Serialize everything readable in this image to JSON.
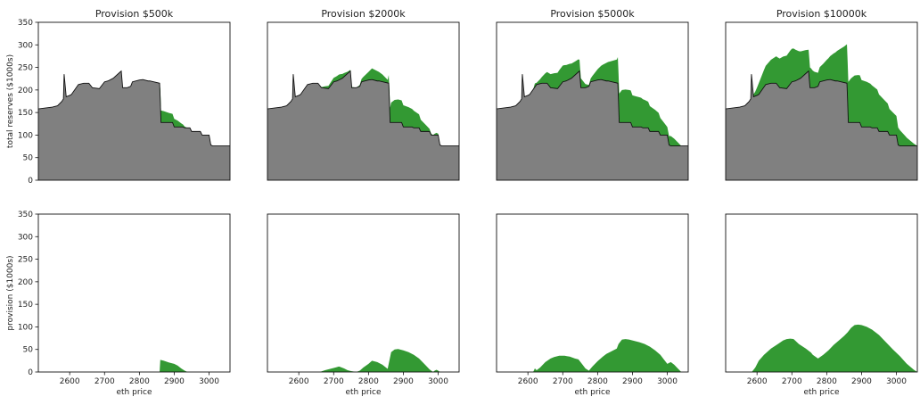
{
  "chart_data": {
    "type": "area",
    "layout": "2 rows x 4 columns of small multiples, shared axes",
    "colors": {
      "reserves": "#808080",
      "provision": "#339933",
      "outline": "#111111"
    },
    "x_axis": {
      "label": "eth price",
      "range": [
        2510,
        3060
      ],
      "ticks": [
        2600,
        2700,
        2800,
        2900,
        3000
      ],
      "tick_labels": [
        "2600",
        "2700",
        "2800",
        "2900",
        "3000"
      ]
    },
    "y_axis": {
      "range": [
        0,
        350
      ],
      "ticks": [
        0,
        50,
        100,
        150,
        200,
        250,
        300,
        350
      ],
      "tick_labels": [
        "0",
        "50",
        "100",
        "150",
        "200",
        "250",
        "300",
        "350"
      ]
    },
    "rows": [
      {
        "ylabel": "total reserves ($1000s)"
      },
      {
        "ylabel": "provision ($1000s)"
      }
    ],
    "baseline": {
      "name": "total reserves",
      "x": [
        2510,
        2550,
        2565,
        2578,
        2580,
        2582,
        2584,
        2590,
        2600,
        2605,
        2625,
        2640,
        2655,
        2665,
        2685,
        2700,
        2710,
        2725,
        2745,
        2748,
        2752,
        2765,
        2775,
        2780,
        2800,
        2810,
        2825,
        2830,
        2858,
        2860,
        2862,
        2885,
        2895,
        2900,
        2925,
        2930,
        2945,
        2950,
        2975,
        2980,
        3000,
        3005,
        3010,
        3035,
        3060
      ],
      "y": [
        158,
        162,
        165,
        175,
        178,
        180,
        235,
        185,
        188,
        190,
        212,
        215,
        215,
        205,
        203,
        218,
        220,
        226,
        240,
        242,
        205,
        205,
        208,
        218,
        222,
        223,
        220,
        220,
        215,
        175,
        128,
        128,
        128,
        118,
        118,
        116,
        116,
        108,
        108,
        100,
        100,
        78,
        76,
        76,
        76
      ]
    },
    "panels": [
      {
        "title": "Provision $500k",
        "provision": {
          "x": [
            2858,
            2860,
            2870,
            2885,
            2900,
            2910,
            2920,
            2930,
            2938
          ],
          "y": [
            0,
            27,
            25,
            21,
            18,
            14,
            8,
            3,
            0
          ]
        }
      },
      {
        "title": "Provision $2000k",
        "provision": {
          "x": [
            2660,
            2675,
            2690,
            2705,
            2715,
            2720,
            2730,
            2740,
            2750,
            2758,
            2765,
            2775,
            2785,
            2800,
            2810,
            2825,
            2840,
            2855,
            2865,
            2875,
            2885,
            2900,
            2915,
            2930,
            2945,
            2955,
            2965,
            2975,
            2985,
            2990,
            2995,
            3000,
            3005
          ],
          "y": [
            0,
            4,
            7,
            10,
            12,
            11,
            8,
            4,
            2,
            1,
            0,
            3,
            10,
            18,
            25,
            22,
            16,
            7,
            44,
            50,
            51,
            48,
            44,
            38,
            30,
            22,
            14,
            6,
            0,
            3,
            5,
            3,
            0
          ]
        }
      },
      {
        "title": "Provision $5000k",
        "provision": {
          "x": [
            2615,
            2620,
            2625,
            2635,
            2650,
            2665,
            2675,
            2690,
            2705,
            2720,
            2735,
            2745,
            2755,
            2765,
            2775,
            2785,
            2800,
            2815,
            2825,
            2835,
            2845,
            2855,
            2860,
            2870,
            2880,
            2890,
            2900,
            2910,
            2920,
            2935,
            2950,
            2965,
            2980,
            2990,
            3000,
            3010,
            3020,
            3030,
            3040
          ],
          "y": [
            0,
            8,
            4,
            10,
            22,
            30,
            33,
            36,
            36,
            34,
            30,
            28,
            18,
            8,
            3,
            12,
            24,
            34,
            40,
            44,
            48,
            52,
            62,
            72,
            73,
            72,
            70,
            68,
            66,
            62,
            56,
            48,
            38,
            28,
            18,
            22,
            16,
            8,
            0
          ]
        }
      },
      {
        "title": "Provision $10000k",
        "provision": {
          "x": [
            2585,
            2595,
            2605,
            2620,
            2640,
            2660,
            2675,
            2685,
            2695,
            2705,
            2720,
            2740,
            2755,
            2760,
            2775,
            2790,
            2805,
            2820,
            2835,
            2850,
            2860,
            2870,
            2880,
            2890,
            2900,
            2915,
            2930,
            2950,
            2970,
            2990,
            3010,
            3030,
            3050,
            3060
          ],
          "y": [
            0,
            10,
            25,
            38,
            52,
            62,
            70,
            73,
            74,
            73,
            62,
            52,
            43,
            38,
            30,
            38,
            48,
            60,
            70,
            80,
            88,
            98,
            104,
            105,
            104,
            100,
            94,
            82,
            66,
            50,
            35,
            18,
            5,
            0
          ]
        }
      }
    ]
  }
}
